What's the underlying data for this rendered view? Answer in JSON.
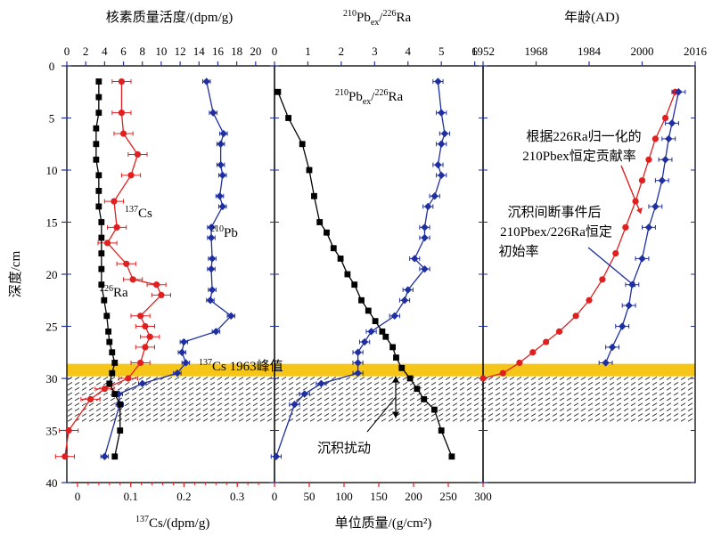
{
  "chart_data": [
    {
      "type": "scatter",
      "panel": "activity",
      "title": "核素质量活度/(dpm/g)",
      "xlabel_top": "核素质量活度/(dpm/g)",
      "xlabel_bottom": "137Cs/(dpm/g)",
      "ylabel": "深度/cm",
      "xlim_top": [
        0,
        22
      ],
      "xticks_top": [
        "0",
        "2",
        "4",
        "6",
        "8",
        "10",
        "12",
        "14",
        "16",
        "18",
        "20"
      ],
      "xlim_bottom": [
        -0.02,
        0.37
      ],
      "xticks_bottom": [
        "0",
        "0.1",
        "0.2",
        "0.3"
      ],
      "ylim": [
        40,
        0
      ],
      "yticks": [
        "0",
        "5",
        "10",
        "15",
        "20",
        "25",
        "30",
        "35",
        "40"
      ],
      "series": [
        {
          "name": "210Pb",
          "axis": "top",
          "color": "#1f2fa0",
          "marker": "diamond",
          "depth": [
            1.5,
            4.5,
            6.5,
            7.5,
            9.5,
            10.5,
            12.5,
            13.5,
            15.5,
            16.5,
            18.5,
            19.5,
            21.5,
            22.5,
            24,
            25.5,
            26.5,
            27.5,
            28.5,
            29.5,
            30.5,
            31.5,
            32.5,
            37.5
          ],
          "value": [
            14.8,
            15.5,
            16.6,
            16.3,
            16.3,
            16.5,
            16.2,
            16.5,
            15.3,
            15.3,
            15.4,
            15.3,
            15.4,
            15.2,
            17.4,
            15.8,
            12.4,
            12.2,
            12.6,
            11.7,
            8.0,
            5.5,
            5.6,
            4.0
          ],
          "xerr": 0.4
        },
        {
          "name": "226Ra",
          "axis": "top",
          "color": "#e02020",
          "marker": "circle",
          "depth": [
            1.5,
            4.5,
            6.5,
            8.5,
            10.5,
            13,
            15.5,
            17,
            19,
            20.5,
            21,
            22,
            24,
            25,
            26,
            27,
            28.5,
            30,
            31,
            32,
            35,
            37.5
          ],
          "value": [
            5.8,
            5.8,
            6.0,
            7.5,
            6.8,
            5.0,
            5.3,
            4.3,
            6.3,
            7.0,
            9.5,
            10.0,
            7.8,
            8.3,
            8.8,
            8.3,
            7.8,
            6.5,
            4.0,
            2.5,
            0.2,
            -0.2
          ],
          "xerr": 1.0
        },
        {
          "name": "137Cs",
          "axis": "bottom",
          "color": "#000000",
          "marker": "square",
          "depth": [
            1.5,
            3,
            4.5,
            6,
            7.5,
            9,
            10.5,
            12,
            13.5,
            15,
            16.5,
            18,
            19.5,
            21,
            22.5,
            24,
            25.5,
            26.5,
            27.5,
            28.5,
            29.5,
            30.5,
            31.5,
            32.5,
            35,
            37.5
          ],
          "value": [
            0.04,
            0.04,
            0.04,
            0.035,
            0.035,
            0.035,
            0.04,
            0.04,
            0.04,
            0.045,
            0.045,
            0.045,
            0.045,
            0.045,
            0.05,
            0.055,
            0.058,
            0.06,
            0.065,
            0.07,
            0.065,
            0.06,
            0.07,
            0.08,
            0.08,
            0.07
          ]
        }
      ],
      "labels": [
        "137Cs",
        "210Pb",
        "226Ra",
        "137Cs 1963峰值"
      ]
    },
    {
      "type": "line",
      "panel": "ratio-and-mass",
      "xlabel_top": "210Pbex/226Ra",
      "xlabel_bottom": "单位质量/(g/cm²)",
      "xlim_top": [
        0,
        6.25
      ],
      "xticks_top": [
        "0",
        "1",
        "2",
        "3",
        "4",
        "5",
        "6"
      ],
      "xlim_bottom": [
        0,
        300
      ],
      "xticks_bottom": [
        "0",
        "50",
        "100",
        "150",
        "200",
        "250",
        "300"
      ],
      "ylim": [
        40,
        0
      ],
      "series": [
        {
          "name": "210Pbex/226Ra",
          "axis": "top",
          "color": "#1f2fa0",
          "marker": "diamond",
          "depth": [
            1.5,
            4.5,
            6.5,
            7.5,
            9.5,
            10.5,
            12.5,
            13.5,
            15.5,
            16.5,
            18.5,
            19.5,
            21.5,
            22.5,
            24,
            25.5,
            26.5,
            27.5,
            28.5,
            29.5,
            30.5,
            31.5,
            32.5,
            37.5
          ],
          "value": [
            4.9,
            5.0,
            5.1,
            5.0,
            4.9,
            5.0,
            4.8,
            4.6,
            4.5,
            4.5,
            4.2,
            4.5,
            4.0,
            3.9,
            3.6,
            2.9,
            2.7,
            2.5,
            2.5,
            2.5,
            1.4,
            0.9,
            0.6,
            0.05
          ],
          "xerr": 0.15
        },
        {
          "name": "单位质量",
          "axis": "bottom",
          "color": "#000000",
          "marker": "square",
          "depth": [
            2.5,
            5,
            7.5,
            10,
            12.5,
            15,
            16,
            17.5,
            18.5,
            20,
            21,
            22.5,
            23.5,
            24.5,
            25.5,
            26,
            27,
            28,
            29,
            30,
            31,
            32,
            33,
            35,
            37.5
          ],
          "value": [
            5,
            20,
            40,
            50,
            57,
            65,
            75,
            85,
            95,
            105,
            115,
            125,
            135,
            145,
            155,
            160,
            170,
            175,
            183,
            195,
            205,
            215,
            230,
            240,
            255
          ]
        }
      ],
      "labels": [
        "沉积扰动"
      ]
    },
    {
      "type": "line",
      "panel": "age",
      "xlabel_top": "年龄(AD)",
      "xlim_top": [
        1952,
        2016
      ],
      "xticks_top": [
        "1952",
        "1968",
        "1984",
        "2000",
        "2016"
      ],
      "ylim": [
        40,
        0
      ],
      "series": [
        {
          "name": "根据226Ra归一化的210Pbex恒定贡献率",
          "color": "#e02020",
          "marker": "circle",
          "depth": [
            2.5,
            5,
            7,
            9,
            11,
            13,
            15.5,
            18,
            20.5,
            22.5,
            24,
            25.5,
            26.5,
            27.5,
            28.5,
            29.5,
            30
          ],
          "year": [
            2010,
            2007,
            2004,
            2002,
            2000,
            1998,
            1995,
            1992,
            1988,
            1984,
            1980,
            1975,
            1971,
            1967,
            1963,
            1958,
            1952
          ]
        },
        {
          "name": "沉积间断事件后210Pbex/226Ra恒定初始率",
          "color": "#1f2fa0",
          "marker": "diamond",
          "depth": [
            2.5,
            5.5,
            7,
            9,
            11,
            13.5,
            15.5,
            18.5,
            21,
            23,
            25,
            27,
            28.5
          ],
          "year": [
            2011,
            2009,
            2008,
            2007,
            2006,
            2004,
            2002,
            2000,
            1997,
            1996,
            1994,
            1991,
            1989
          ],
          "xerr": 2
        }
      ],
      "labels": [
        "根据226Ra归一化的",
        "210Pbex恒定贡献率",
        "沉积间断事件后",
        "210Pbex/226Ra恒定",
        "初始率"
      ]
    }
  ],
  "colors": {
    "red": "#e02020",
    "blue": "#1f2fa0",
    "black": "#000000",
    "band": "#f5c518"
  }
}
